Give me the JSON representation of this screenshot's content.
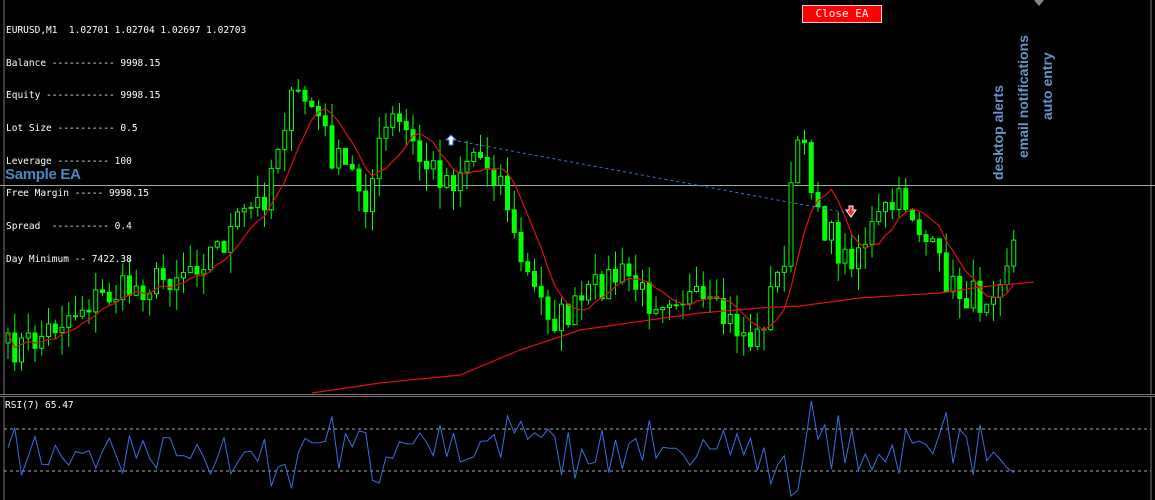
{
  "info_panel": {
    "symbol_line": "EURUSD,M1  1.02701 1.02704 1.02697 1.02703",
    "lines": [
      "Balance ----------- 9998.15",
      "Equity ------------ 9998.15",
      "Lot Size ---------- 0.5",
      "Leverage --------- 100",
      "Free Margin ----- 9998.15",
      "Spread  ---------- 0.4",
      "Day Minimum -- 7422.38"
    ]
  },
  "close_button": {
    "label": "Close EA",
    "color": "#ff0000"
  },
  "ea_label": "Sample EA",
  "vertical_labels": [
    "desktop alerts",
    "email notifications",
    "auto entry"
  ],
  "rsi": {
    "label": "RSI(7) 65.47"
  },
  "colors": {
    "background": "#000000",
    "candle": "#00ff00",
    "ma": "#e01010",
    "rsi_line": "#3b6fe0",
    "label_blue": "#4f87c7"
  },
  "chart_data": {
    "type": "candlestick",
    "candle_count": 150,
    "seed": 7
  }
}
